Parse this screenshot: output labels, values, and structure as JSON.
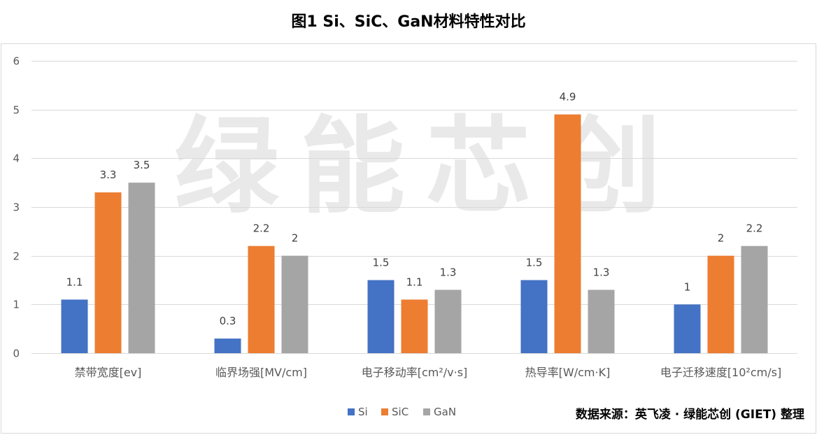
{
  "chart_data": {
    "type": "bar",
    "title": "图1  Si、SiC、GaN材料特性对比",
    "categories": [
      "禁带宽度[ev]",
      "临界场强[MV/cm]",
      "电子移动率[cm²/v·s]",
      "热导率[W/cm·K]",
      "电子迁移速度[10²cm/s]"
    ],
    "series": [
      {
        "name": "Si",
        "color": "#4472C4",
        "values": [
          1.1,
          0.3,
          1.5,
          1.5,
          1
        ]
      },
      {
        "name": "SiC",
        "color": "#ED7D31",
        "values": [
          3.3,
          2.2,
          1.1,
          4.9,
          2
        ]
      },
      {
        "name": "GaN",
        "color": "#A5A5A5",
        "values": [
          3.5,
          2,
          1.3,
          1.3,
          2.2
        ]
      }
    ],
    "data_labels": [
      [
        "1.1",
        "0.3",
        "1.5",
        "1.5",
        "1"
      ],
      [
        "3.3",
        "2.2",
        "1.1",
        "4.9",
        "2"
      ],
      [
        "3.5",
        "2",
        "1.3",
        "1.3",
        "2.2"
      ]
    ],
    "ylim": [
      0,
      6
    ],
    "yticks": [
      0,
      1,
      2,
      3,
      4,
      5,
      6
    ],
    "ytick_labels": [
      "0",
      "1",
      "2",
      "3",
      "4",
      "5",
      "6"
    ],
    "grid": true,
    "legend": "bottom-center",
    "watermark": [
      "绿",
      "能",
      "芯",
      "创"
    ],
    "source": "数据来源：英飞凌 · 绿能芯创 (GIET) 整理"
  }
}
